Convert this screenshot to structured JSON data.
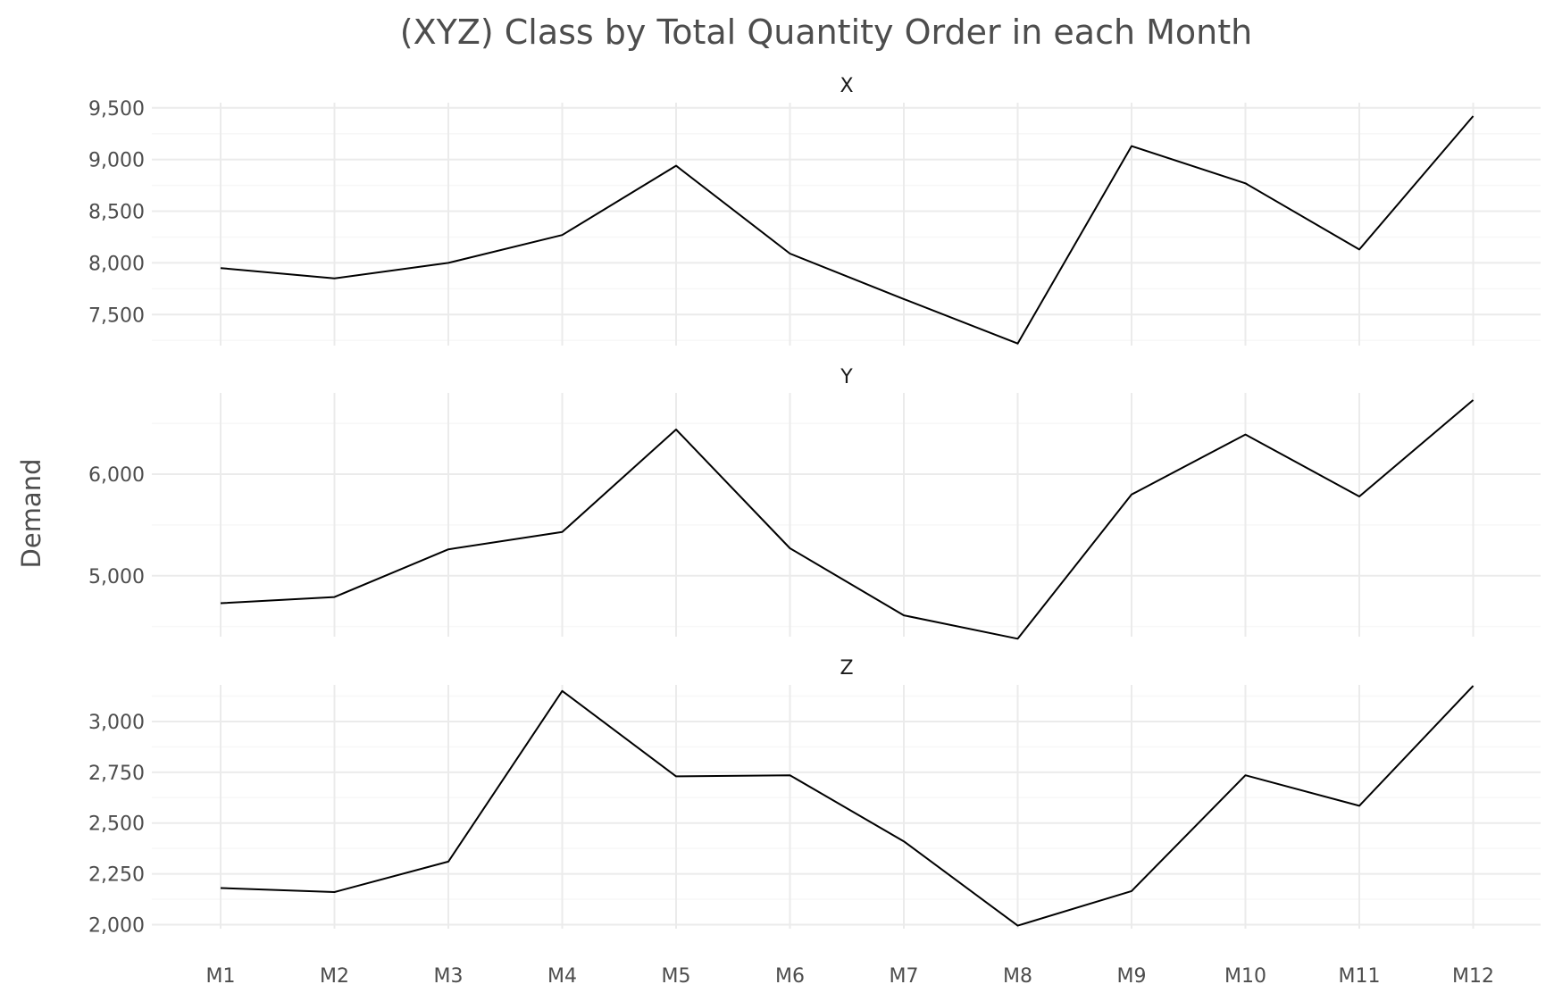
{
  "chart_data": {
    "type": "line",
    "title": "(XYZ) Class by Total Quantity Order in each Month",
    "xlabel": "",
    "ylabel": "Demand",
    "categories": [
      "M1",
      "M2",
      "M3",
      "M4",
      "M5",
      "M6",
      "M7",
      "M8",
      "M9",
      "M10",
      "M11",
      "M12"
    ],
    "grid": true,
    "legend": "none",
    "line_color": "#000000",
    "panels": [
      {
        "facet": "X",
        "ylim": [
          7200,
          9550
        ],
        "yticks": [
          7500,
          8000,
          8500,
          9000,
          9500
        ],
        "ytick_labels": [
          "7,500",
          "8,000",
          "8,500",
          "9,000",
          "9,500"
        ],
        "yminor": [
          7250,
          7750,
          8250,
          8750,
          9250
        ],
        "values": [
          7950,
          7850,
          8000,
          8270,
          8940,
          8090,
          7650,
          7220,
          9130,
          8770,
          8130,
          9420
        ]
      },
      {
        "facet": "Y",
        "ylim": [
          4400,
          6800
        ],
        "yticks": [
          5000,
          6000
        ],
        "ytick_labels": [
          "5,000",
          "6,000"
        ],
        "yminor": [
          4500,
          5500,
          6500
        ],
        "values": [
          4730,
          4790,
          5260,
          5430,
          6440,
          5270,
          4610,
          4380,
          5800,
          6390,
          5780,
          6730
        ]
      },
      {
        "facet": "Z",
        "ylim": [
          1980,
          3180
        ],
        "yticks": [
          2000,
          2250,
          2500,
          2750,
          3000
        ],
        "ytick_labels": [
          "2,000",
          "2,250",
          "2,500",
          "2,750",
          "3,000"
        ],
        "yminor": [
          2125,
          2375,
          2625,
          2875,
          3125
        ],
        "values": [
          2180,
          2160,
          2310,
          3150,
          2730,
          2735,
          2410,
          1995,
          2165,
          2735,
          2585,
          3175
        ]
      }
    ]
  }
}
